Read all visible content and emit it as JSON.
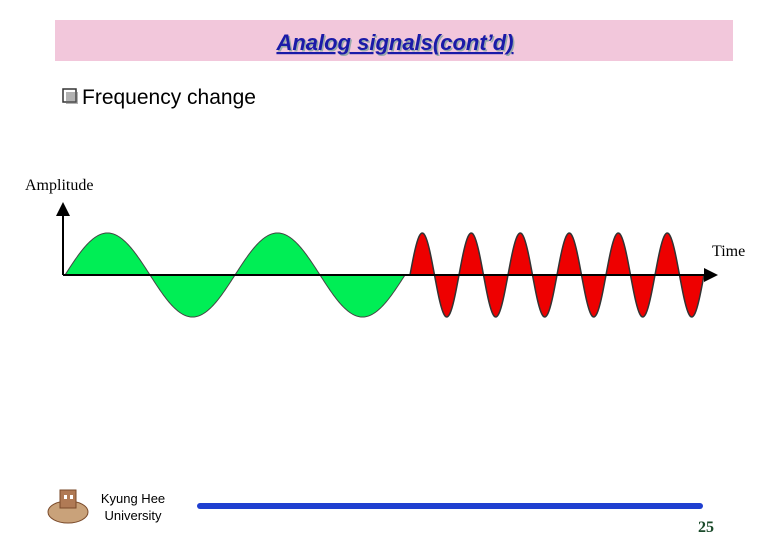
{
  "header": {
    "title": "Analog signals(cont’d)"
  },
  "bullet": {
    "text": "Frequency change"
  },
  "diagram": {
    "y_axis_label": "Amplitude",
    "x_axis_label": "Time"
  },
  "footer": {
    "institution": [
      "Kyung Hee",
      "University"
    ],
    "page_number": "25"
  }
}
